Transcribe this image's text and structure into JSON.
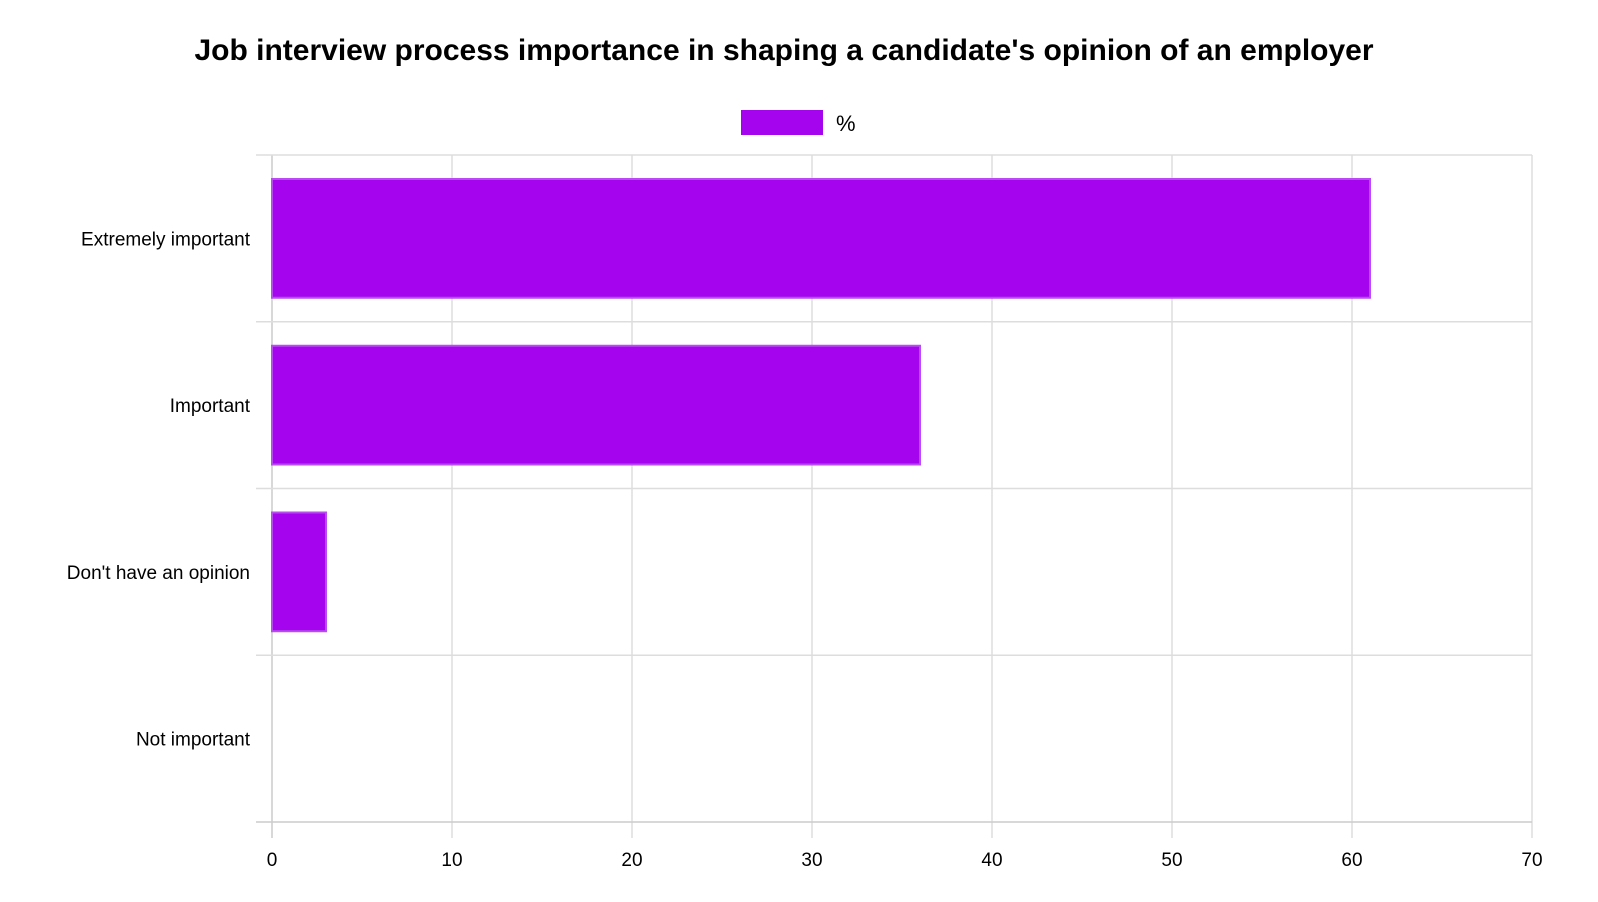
{
  "chart_data": {
    "type": "bar",
    "orientation": "horizontal",
    "title": "Job interview process importance in shaping a candidate's opinion of an employer",
    "categories": [
      "Extremely important",
      "Important",
      "Don't have an opinion",
      "Not important"
    ],
    "series": [
      {
        "name": "%",
        "values": [
          61,
          36,
          3,
          0
        ],
        "color": "#a505ee"
      }
    ],
    "xlim": [
      0,
      70
    ],
    "xticks": [
      0,
      10,
      20,
      30,
      40,
      50,
      60,
      70
    ],
    "grid": true,
    "legend_position": "top"
  }
}
